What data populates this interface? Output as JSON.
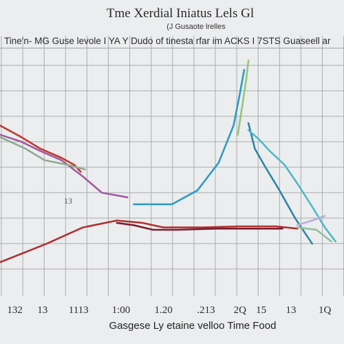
{
  "chart_data": {
    "type": "line",
    "title": "Tme Xerdial Iniatus Lels  Gl",
    "subtitle": "(J Gusaote lrelles",
    "subtitle2": "Tine'n- MG Guse  levole I YA Y Dudo of tinesta rfar  im ACKS I 7STS Guaseell ar",
    "xlabel": "Gasgese Ly etaine velloo Time Food",
    "annotation": "13",
    "x_ticks": [
      "132",
      "13",
      "1113",
      "1:00",
      "1.20",
      ".213",
      "2Q",
      "15",
      "13",
      "1Q"
    ],
    "x_tick_positions": [
      0,
      1.3,
      3,
      5,
      7,
      9,
      10.6,
      11.6,
      13,
      14.6
    ],
    "xlim": [
      -0.7,
      15.5
    ],
    "ylim": [
      0,
      100
    ],
    "grid": true,
    "series": [
      {
        "color": "#c0392b",
        "x": [
          -0.7,
          0.3,
          1.2,
          2.2,
          2.8,
          3.1
        ],
        "y": [
          72,
          67,
          62,
          58,
          55,
          52
        ]
      },
      {
        "color": "#a05aa0",
        "x": [
          -0.7,
          0.3,
          1.2,
          2.2,
          3.2,
          4.1,
          5.3
        ],
        "y": [
          68,
          65,
          61,
          57,
          50,
          43,
          41
        ]
      },
      {
        "color": "#8faa8f",
        "x": [
          -0.7,
          0.5,
          1.4,
          2.5,
          3.3
        ],
        "y": [
          67,
          62,
          57,
          55,
          53
        ]
      },
      {
        "color": "#b03030",
        "x": [
          -0.7,
          1.5,
          3.2,
          4.8,
          6,
          7,
          8.8,
          10.6,
          12.3,
          13.3
        ],
        "y": [
          13,
          21,
          28,
          31,
          30,
          28,
          28,
          28.5,
          28.5,
          27.5
        ]
      },
      {
        "color": "#7a1f2e",
        "x": [
          4.8,
          5.6,
          6.5,
          7.7,
          9.5,
          11.3,
          12.6
        ],
        "y": [
          30,
          29,
          27,
          27,
          27.5,
          27.5,
          27.5
        ]
      },
      {
        "color": "#2b9cc4",
        "x": [
          5.6,
          6.6,
          7.4,
          8.6,
          9.6,
          10.3,
          10.6,
          10.8
        ],
        "y": [
          38,
          38,
          38,
          44,
          56,
          72,
          86,
          96
        ]
      },
      {
        "color": "#96c47a",
        "x": [
          10.5,
          10.7,
          10.9,
          11
        ],
        "y": [
          68,
          80,
          92,
          100
        ]
      },
      {
        "color": "#2b86a8",
        "x": [
          11,
          11.3,
          11.8,
          12.4,
          13.2,
          14
        ],
        "y": [
          73,
          62,
          54,
          45,
          32,
          21
        ]
      },
      {
        "color": "#4fb8c8",
        "x": [
          11,
          11.5,
          12,
          12.7,
          13.3,
          14,
          14.6,
          15.1
        ],
        "y": [
          70,
          66,
          61,
          55,
          47,
          37,
          28,
          22
        ]
      },
      {
        "color": "#b8b0d8",
        "x": [
          13.3,
          14,
          14.6
        ],
        "y": [
          29,
          31,
          33
        ]
      },
      {
        "color": "#8fbf9f",
        "x": [
          13.3,
          14.2,
          14.9
        ],
        "y": [
          28,
          27,
          22
        ]
      }
    ]
  }
}
